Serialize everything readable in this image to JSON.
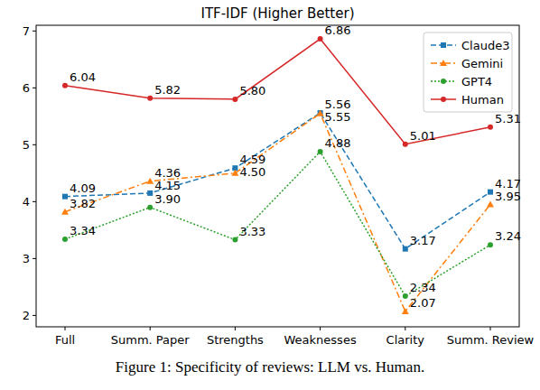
{
  "chart_data": {
    "type": "line",
    "title": "ITF-IDF (Higher Better)",
    "caption": "Figure 1: Specificity of reviews: LLM vs. Human.",
    "categories": [
      "Full",
      "Summ. Paper",
      "Strengths",
      "Weaknesses",
      "Clarity",
      "Summ. Review"
    ],
    "series": [
      {
        "name": "Claude3",
        "color": "#1f77b4",
        "marker": "square",
        "line_style": "dashed",
        "values": [
          4.09,
          4.15,
          4.59,
          5.56,
          3.17,
          4.17
        ]
      },
      {
        "name": "Gemini",
        "color": "#ff7f0e",
        "marker": "triangle",
        "line_style": "dashdot",
        "values": [
          3.82,
          4.36,
          4.5,
          5.55,
          2.07,
          3.95
        ]
      },
      {
        "name": "GPT4",
        "color": "#2ca02c",
        "marker": "circle",
        "line_style": "dotted",
        "values": [
          3.34,
          3.9,
          3.33,
          4.88,
          2.34,
          3.24
        ]
      },
      {
        "name": "Human",
        "color": "#d62728",
        "marker": "circle",
        "line_style": "solid",
        "values": [
          6.04,
          5.82,
          5.8,
          6.86,
          5.01,
          5.31
        ]
      }
    ],
    "ylim": [
      1.8,
      7.1
    ],
    "yticks": [
      2,
      3,
      4,
      5,
      6,
      7
    ],
    "grid": false,
    "legend": "upper right",
    "data_labels": true
  }
}
